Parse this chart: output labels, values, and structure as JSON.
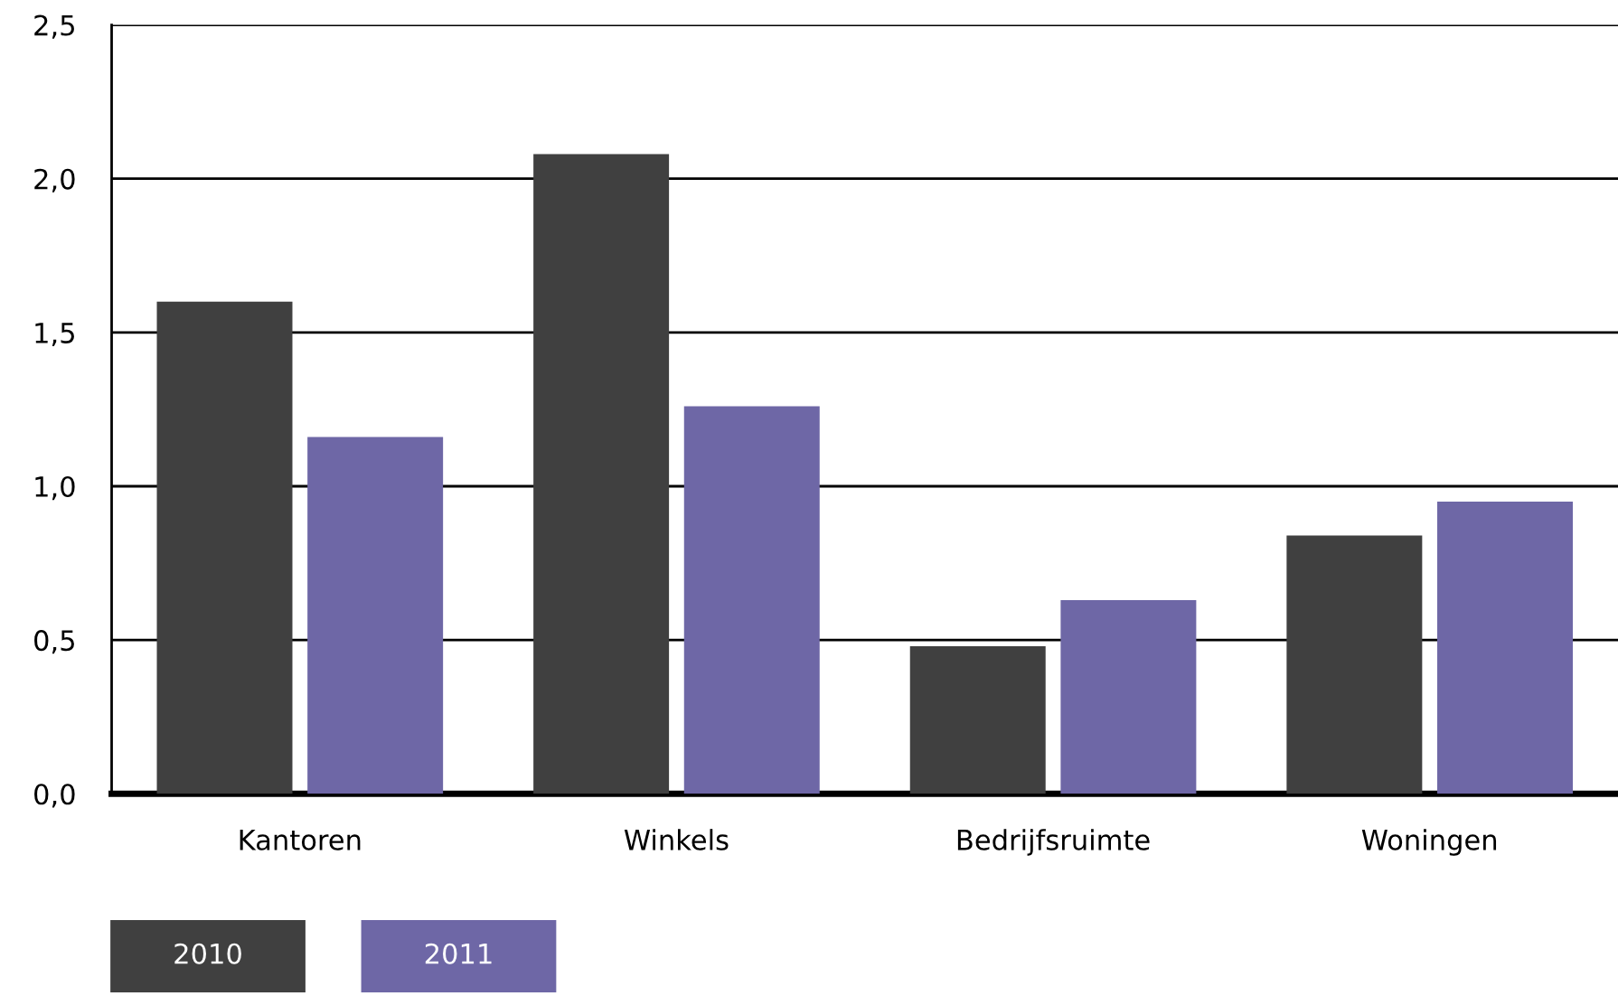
{
  "chart_data": {
    "type": "bar",
    "categories": [
      "Kantoren",
      "Winkels",
      "Bedrijfsruimte",
      "Woningen"
    ],
    "series": [
      {
        "name": "2010",
        "color": "#404040",
        "values": [
          1.6,
          2.08,
          0.48,
          0.84
        ]
      },
      {
        "name": "2011",
        "color": "#6e67a6",
        "values": [
          1.16,
          1.26,
          0.63,
          0.95
        ]
      }
    ],
    "ylim": [
      0,
      2.5
    ],
    "yticks": [
      {
        "value": 0,
        "label": "0,0"
      },
      {
        "value": 0.5,
        "label": "0,5"
      },
      {
        "value": 1,
        "label": "1,0"
      },
      {
        "value": 1.5,
        "label": "1,5"
      },
      {
        "value": 2,
        "label": "2,0"
      },
      {
        "value": 2.5,
        "label": "2,5"
      }
    ],
    "grid": "y",
    "legend": "bottom"
  }
}
